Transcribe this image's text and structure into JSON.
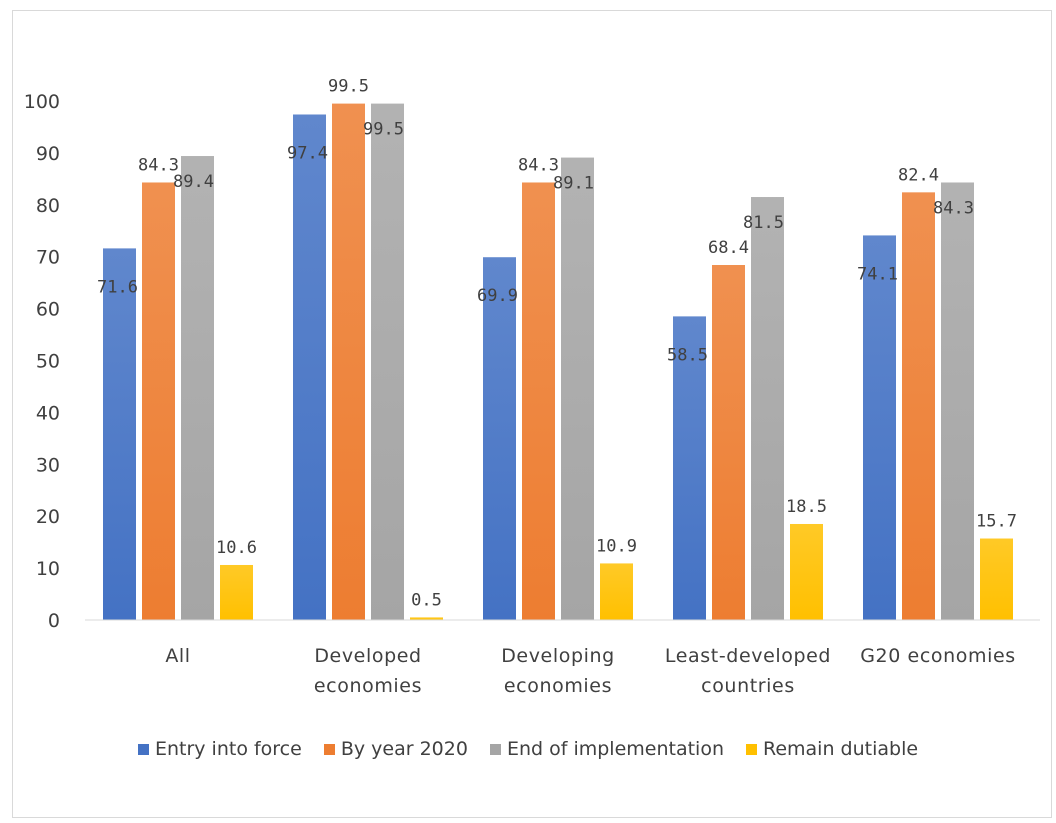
{
  "chart_data": {
    "type": "bar",
    "title": "",
    "xlabel": "",
    "ylabel": "",
    "categories": [
      [
        "All"
      ],
      [
        "Developed",
        "economies"
      ],
      [
        "Developing",
        "economies"
      ],
      [
        "Least-developed",
        "countries"
      ],
      [
        "G20 economies"
      ]
    ],
    "series": [
      {
        "name": "Entry into force",
        "color": "#4472c4",
        "values": [
          71.6,
          97.4,
          69.9,
          58.5,
          74.1
        ],
        "labels": [
          "71.6",
          "97.4",
          "69.9",
          "58.5",
          "74.1"
        ]
      },
      {
        "name": "By year 2020",
        "color": "#ed7d31",
        "values": [
          84.3,
          99.5,
          84.3,
          68.4,
          82.4
        ],
        "labels": [
          "84.3",
          "99.5",
          "84.3",
          "68.4",
          "82.4"
        ]
      },
      {
        "name": "End of implementation",
        "color": "#a5a5a5",
        "values": [
          89.4,
          99.5,
          89.1,
          81.5,
          84.3
        ],
        "labels": [
          "89.4",
          "99.5",
          "89.1",
          "81.5",
          "84.3"
        ]
      },
      {
        "name": "Remain dutiable",
        "color": "#ffc000",
        "values": [
          10.6,
          0.5,
          10.9,
          18.5,
          15.7
        ],
        "labels": [
          "10.6",
          "0.5",
          "10.9",
          "18.5",
          "15.7"
        ]
      }
    ],
    "ylim": [
      0,
      100
    ],
    "yticks": [
      "0",
      "10",
      "20",
      "30",
      "40",
      "50",
      "60",
      "70",
      "80",
      "90",
      "100"
    ],
    "grid": false,
    "legend_position": "bottom"
  }
}
